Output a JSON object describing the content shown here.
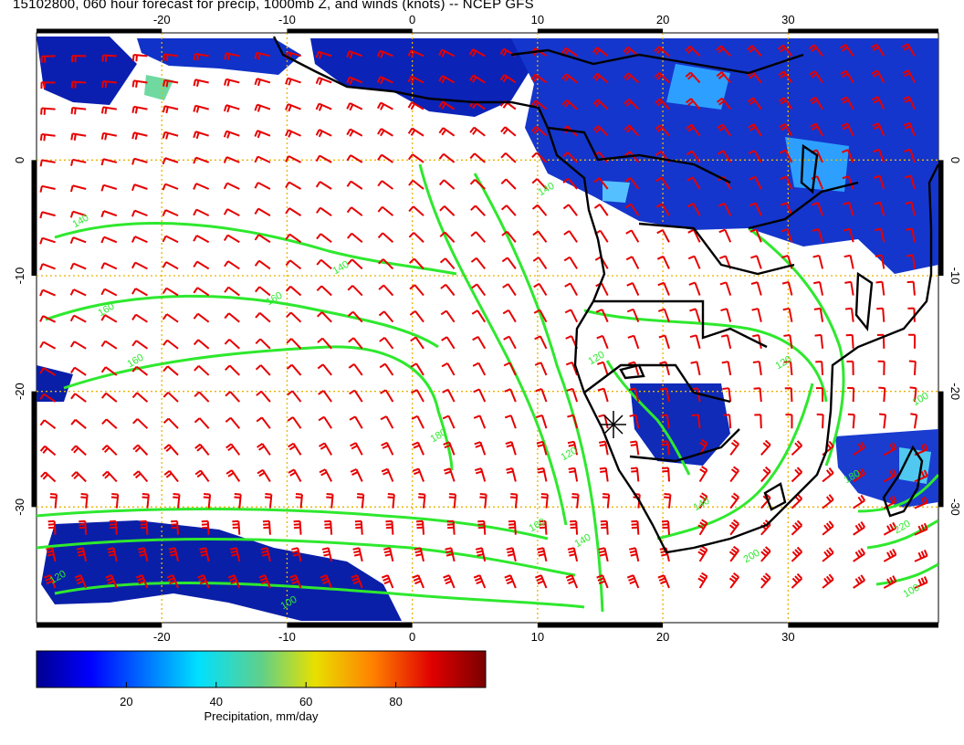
{
  "title": "15102800, 060 hour forecast for precip, 1000mb Z, and winds (knots) -- NCEP GFS",
  "map": {
    "lon_range": [
      -30,
      42
    ],
    "lat_range": [
      -40,
      11
    ],
    "lon_ticks": [
      "-20",
      "-10",
      "0",
      "10",
      "20",
      "30"
    ],
    "lon_tick_values": [
      -20,
      -10,
      0,
      10,
      20,
      30
    ],
    "lat_ticks": [
      "0",
      "-10",
      "-20",
      "-30"
    ],
    "lat_tick_values": [
      0,
      -10,
      -20,
      -30
    ],
    "grid": "dotted orange",
    "colors": {
      "grid": "#e8b400",
      "wind_barb": "#e60000",
      "contour": "#2ee82e",
      "coastline": "#000000"
    }
  },
  "contours": {
    "labels": [
      "140",
      "140",
      "160",
      "160",
      "180",
      "160",
      "140",
      "120",
      "120",
      "100",
      "140",
      "160",
      "200",
      "220",
      "100",
      "120",
      "140",
      "180",
      "120",
      "100"
    ]
  },
  "colorbar": {
    "title": "Precipitation, mm/day",
    "ticks": [
      "20",
      "40",
      "60",
      "80"
    ],
    "tick_values": [
      20,
      40,
      60,
      80
    ],
    "range": [
      0,
      100
    ],
    "colormap": "jet"
  }
}
